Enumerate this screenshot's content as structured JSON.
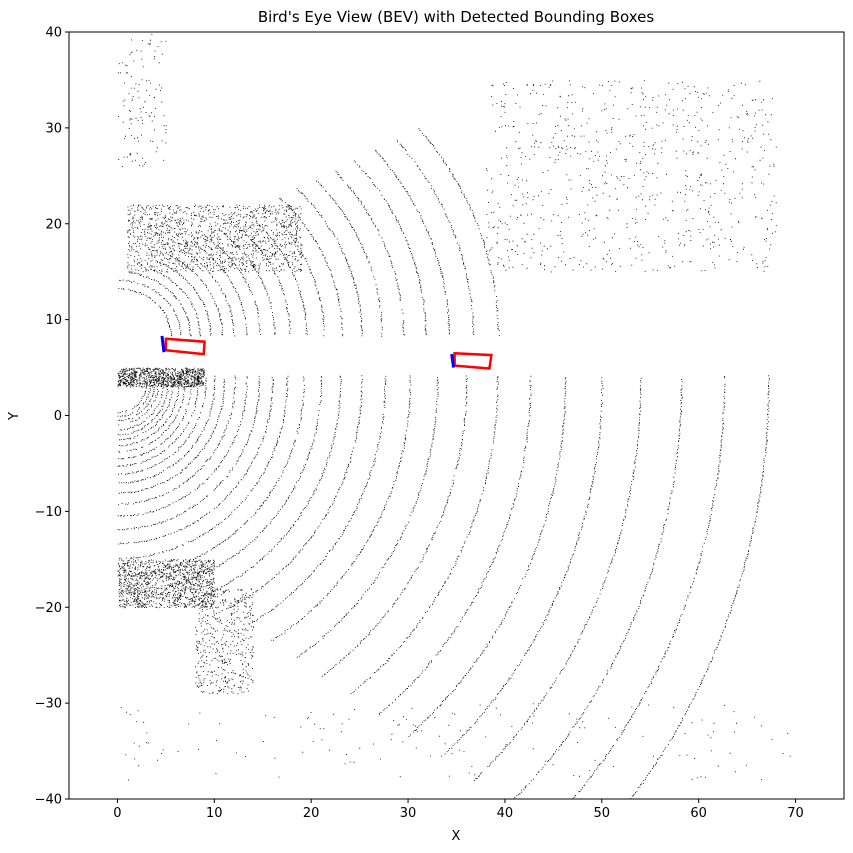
{
  "chart_data": {
    "type": "scatter",
    "title": "Bird's Eye View (BEV) with Detected Bounding Boxes",
    "xlabel": "X",
    "ylabel": "Y",
    "xlim": [
      -5,
      75
    ],
    "ylim": [
      -40,
      40
    ],
    "xticks": [
      0,
      10,
      20,
      30,
      40,
      50,
      60,
      70
    ],
    "yticks": [
      -40,
      -30,
      -20,
      -10,
      0,
      10,
      20,
      30,
      40
    ],
    "grid": false,
    "point_color": "#000000",
    "box_color": "#ff0000",
    "front_marker_color": "#0000ff",
    "boxes": [
      {
        "corners": [
          [
            5.0,
            8.0
          ],
          [
            9.0,
            7.7
          ],
          [
            8.9,
            6.4
          ],
          [
            5.0,
            6.8
          ]
        ],
        "front": [
          [
            4.6,
            8.3
          ],
          [
            4.8,
            6.6
          ]
        ]
      },
      {
        "corners": [
          [
            34.8,
            6.5
          ],
          [
            38.6,
            6.3
          ],
          [
            38.4,
            4.9
          ],
          [
            34.8,
            5.2
          ]
        ],
        "front": [
          [
            34.5,
            6.4
          ],
          [
            34.7,
            5.0
          ]
        ]
      }
    ],
    "scan_arcs": {
      "left_radii": [
        3,
        3.4,
        3.8,
        4.2,
        4.7,
        5.2,
        5.7,
        6.3,
        6.9,
        7.6,
        8.3,
        9.1,
        10,
        11,
        12.1,
        13.3,
        14.6,
        16,
        17.5,
        19.2,
        21,
        23,
        25.2,
        27.6,
        30.2,
        33,
        36,
        39.2,
        42.6,
        46.2,
        50,
        54,
        58.2,
        62.6,
        67.2
      ],
      "right_radii": [
        5.5,
        6.5,
        7.5,
        8.5,
        9.6,
        10.8,
        12,
        13.3,
        14.7,
        16.2,
        17.8,
        19.5,
        21.3,
        23.2,
        25.2,
        27.3,
        29.5,
        31.8,
        34.2,
        36.7,
        39.3
      ]
    },
    "vegetation_clusters": [
      {
        "x": [
          1,
          19
        ],
        "y": [
          15,
          22
        ],
        "density": 1400
      },
      {
        "x": [
          0,
          10
        ],
        "y": [
          -20,
          -15
        ],
        "density": 1200
      },
      {
        "x": [
          8,
          14
        ],
        "y": [
          -29,
          -18
        ],
        "density": 500
      },
      {
        "x": [
          38,
          68
        ],
        "y": [
          15,
          35
        ],
        "density": 800
      },
      {
        "x": [
          0,
          5
        ],
        "y": [
          26,
          40
        ],
        "density": 120
      },
      {
        "x": [
          0,
          9
        ],
        "y": [
          3,
          5
        ],
        "density": 900
      },
      {
        "x": [
          0,
          70
        ],
        "y": [
          -38,
          -30
        ],
        "density": 150
      }
    ]
  }
}
